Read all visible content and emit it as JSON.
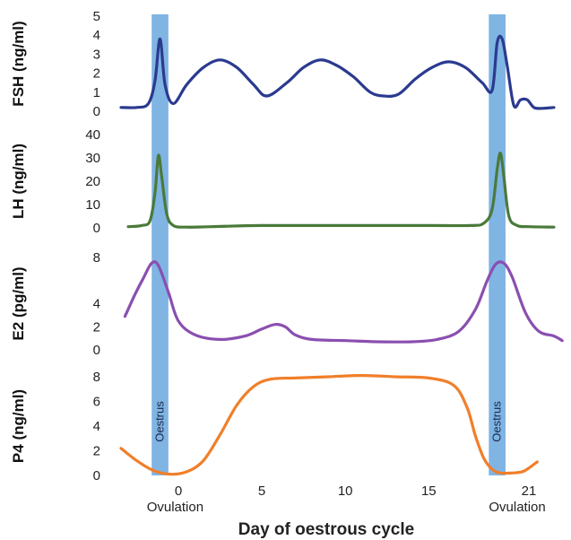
{
  "chart_data": {
    "type": "line",
    "xlabel": "Day of oestrous cycle",
    "x_ticks": [
      0,
      5,
      10,
      15,
      21
    ],
    "xlim": [
      -3.5,
      22.5
    ],
    "ovulation_label": "Ovulation",
    "band_label": "Oestrus",
    "bands": [
      {
        "x_start": -1.6,
        "x_end": -0.6
      },
      {
        "x_start": 18.6,
        "x_end": 19.6
      }
    ],
    "ovulation_days": [
      -1.0,
      19.5
    ],
    "colors": {
      "band": "#7fb4e3",
      "FSH": "#2b3a8f",
      "LH": "#4a7a3a",
      "E2": "#8a4fb0",
      "P4": "#f07f2a"
    },
    "panels": [
      {
        "key": "FSH",
        "ylabel": "FSH (ng/ml)",
        "ylim": [
          0,
          5
        ],
        "y_ticks": [
          0,
          1,
          2,
          3,
          4,
          5
        ],
        "x": [
          -3.5,
          -2.5,
          -1.8,
          -1.4,
          -1.1,
          -0.8,
          -0.3,
          0.5,
          1.5,
          2.5,
          3.5,
          4.5,
          5.3,
          6.5,
          7.5,
          8.5,
          9.5,
          10.5,
          11.5,
          12.3,
          13.2,
          14.2,
          15.2,
          16.2,
          17.2,
          18.2,
          18.8,
          19.1,
          19.4,
          19.7,
          20.1,
          20.5,
          20.9,
          21.3,
          21.8,
          22.5
        ],
        "y": [
          0.2,
          0.2,
          0.4,
          1.6,
          3.8,
          1.4,
          0.4,
          1.4,
          2.3,
          2.7,
          2.3,
          1.4,
          0.8,
          1.5,
          2.3,
          2.7,
          2.4,
          1.8,
          1.0,
          0.8,
          0.9,
          1.7,
          2.3,
          2.6,
          2.3,
          1.5,
          1.1,
          3.6,
          3.8,
          2.4,
          0.3,
          0.6,
          0.6,
          0.2,
          0.15,
          0.2
        ]
      },
      {
        "key": "LH",
        "ylabel": "LH (ng/ml)",
        "ylim": [
          0,
          40
        ],
        "y_ticks": [
          0,
          10,
          20,
          30,
          40
        ],
        "x": [
          -3.0,
          -2.2,
          -1.7,
          -1.4,
          -1.2,
          -1.0,
          -0.7,
          -0.3,
          0.5,
          2.0,
          5.0,
          10.0,
          15.0,
          17.5,
          18.3,
          18.8,
          19.1,
          19.3,
          19.5,
          19.8,
          20.3,
          21.0,
          22.5
        ],
        "y": [
          0.5,
          1.0,
          3.0,
          15.0,
          31.0,
          22.0,
          6.0,
          1.0,
          0.3,
          0.5,
          1.0,
          1.0,
          1.0,
          1.0,
          2.0,
          8.0,
          25.0,
          32.0,
          22.0,
          5.0,
          1.0,
          0.5,
          0.3
        ]
      },
      {
        "key": "E2",
        "ylabel": "E2 (pg/ml)",
        "ylim": [
          0,
          8
        ],
        "y_ticks": [
          0,
          2,
          4,
          8
        ],
        "x": [
          -3.2,
          -2.6,
          -2.1,
          -1.6,
          -1.2,
          -0.6,
          0.0,
          1.0,
          2.5,
          4.0,
          5.0,
          5.8,
          6.4,
          7.0,
          8.0,
          10.0,
          12.0,
          14.0,
          15.5,
          16.8,
          17.8,
          18.5,
          19.0,
          19.5,
          20.0,
          20.8,
          21.6,
          22.5,
          23.0
        ],
        "y": [
          2.9,
          4.8,
          6.2,
          7.5,
          7.3,
          5.0,
          2.5,
          1.3,
          0.9,
          1.2,
          1.8,
          2.2,
          2.0,
          1.3,
          0.9,
          0.8,
          0.7,
          0.7,
          0.9,
          1.6,
          3.5,
          6.0,
          7.4,
          7.5,
          6.3,
          3.2,
          1.6,
          1.2,
          0.8
        ]
      },
      {
        "key": "P4",
        "ylabel": "P4 (ng/ml)",
        "ylim": [
          0,
          8
        ],
        "y_ticks": [
          0,
          2,
          4,
          6,
          8
        ],
        "x": [
          -3.5,
          -2.5,
          -1.5,
          -0.5,
          0.5,
          1.5,
          2.5,
          3.5,
          4.5,
          5.5,
          7.0,
          9.0,
          11.0,
          13.0,
          15.0,
          16.5,
          17.3,
          17.8,
          18.3,
          18.8,
          19.3,
          20.0,
          20.6,
          21.0,
          21.5
        ],
        "y": [
          2.2,
          1.2,
          0.4,
          0.1,
          0.3,
          1.2,
          3.3,
          5.7,
          7.2,
          7.8,
          7.9,
          8.0,
          8.1,
          8.0,
          7.9,
          7.3,
          5.5,
          3.2,
          1.4,
          0.5,
          0.2,
          0.2,
          0.3,
          0.6,
          1.1
        ]
      }
    ]
  }
}
